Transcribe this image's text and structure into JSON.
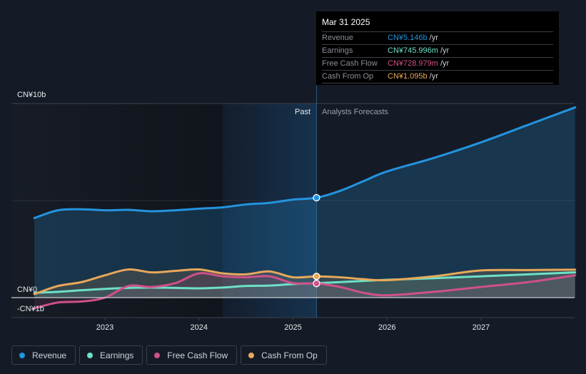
{
  "chart_data": {
    "type": "line",
    "title": "",
    "x_unit": "year",
    "xlim": [
      2022.25,
      2028.0
    ],
    "ylim": [
      -1,
      10
    ],
    "y_unit": "CN¥ billions",
    "y_tick_labels": [
      {
        "value": 10,
        "label": "CN¥10b"
      },
      {
        "value": 0,
        "label": "CN¥0"
      },
      {
        "value": -1,
        "label": "-CN¥1b"
      }
    ],
    "x_ticks": [
      {
        "value": 2023,
        "label": "2023"
      },
      {
        "value": 2024,
        "label": "2024"
      },
      {
        "value": 2025,
        "label": "2025"
      },
      {
        "value": 2026,
        "label": "2026"
      },
      {
        "value": 2027,
        "label": "2027"
      }
    ],
    "past_label": "Past",
    "forecast_label": "Analysts Forecasts",
    "past_shade_start": 2024.25,
    "divider_x": 2025.25,
    "grid": true,
    "legend_position": "bottom-left",
    "series": [
      {
        "name": "Revenue",
        "color": "#2394df",
        "points": [
          [
            2022.25,
            4.1
          ],
          [
            2022.5,
            4.5
          ],
          [
            2022.75,
            4.55
          ],
          [
            2023.0,
            4.5
          ],
          [
            2023.25,
            4.52
          ],
          [
            2023.5,
            4.45
          ],
          [
            2023.75,
            4.5
          ],
          [
            2024.0,
            4.58
          ],
          [
            2024.25,
            4.65
          ],
          [
            2024.5,
            4.8
          ],
          [
            2024.75,
            4.88
          ],
          [
            2025.0,
            5.05
          ],
          [
            2025.25,
            5.146
          ],
          [
            2025.5,
            5.5
          ],
          [
            2025.75,
            6.0
          ],
          [
            2026.0,
            6.5
          ],
          [
            2026.5,
            7.2
          ],
          [
            2027.0,
            8.0
          ],
          [
            2027.5,
            8.9
          ],
          [
            2028.0,
            9.8
          ]
        ]
      },
      {
        "name": "Earnings",
        "color": "#6ee0c8",
        "points": [
          [
            2022.25,
            0.25
          ],
          [
            2022.5,
            0.3
          ],
          [
            2022.75,
            0.38
          ],
          [
            2023.0,
            0.45
          ],
          [
            2023.25,
            0.5
          ],
          [
            2023.5,
            0.52
          ],
          [
            2023.75,
            0.5
          ],
          [
            2024.0,
            0.48
          ],
          [
            2024.25,
            0.52
          ],
          [
            2024.5,
            0.6
          ],
          [
            2024.75,
            0.62
          ],
          [
            2025.0,
            0.7
          ],
          [
            2025.25,
            0.746
          ],
          [
            2025.5,
            0.8
          ],
          [
            2025.75,
            0.86
          ],
          [
            2026.0,
            0.92
          ],
          [
            2026.5,
            1.0
          ],
          [
            2027.0,
            1.1
          ],
          [
            2027.5,
            1.2
          ],
          [
            2028.0,
            1.3
          ]
        ]
      },
      {
        "name": "Free Cash Flow",
        "color": "#d0508a",
        "points": [
          [
            2022.25,
            -0.55
          ],
          [
            2022.5,
            -0.25
          ],
          [
            2022.75,
            -0.2
          ],
          [
            2023.0,
            0.0
          ],
          [
            2023.25,
            0.6
          ],
          [
            2023.5,
            0.55
          ],
          [
            2023.75,
            0.75
          ],
          [
            2024.0,
            1.25
          ],
          [
            2024.25,
            1.1
          ],
          [
            2024.5,
            1.05
          ],
          [
            2024.75,
            1.1
          ],
          [
            2025.0,
            0.75
          ],
          [
            2025.25,
            0.729
          ],
          [
            2025.5,
            0.55
          ],
          [
            2025.75,
            0.25
          ],
          [
            2026.0,
            0.12
          ],
          [
            2026.5,
            0.3
          ],
          [
            2027.0,
            0.55
          ],
          [
            2027.5,
            0.8
          ],
          [
            2028.0,
            1.15
          ]
        ]
      },
      {
        "name": "Cash From Op",
        "color": "#e8a85a",
        "points": [
          [
            2022.25,
            0.18
          ],
          [
            2022.5,
            0.6
          ],
          [
            2022.75,
            0.8
          ],
          [
            2023.0,
            1.15
          ],
          [
            2023.25,
            1.45
          ],
          [
            2023.5,
            1.3
          ],
          [
            2023.75,
            1.38
          ],
          [
            2024.0,
            1.45
          ],
          [
            2024.25,
            1.25
          ],
          [
            2024.5,
            1.2
          ],
          [
            2024.75,
            1.35
          ],
          [
            2025.0,
            1.05
          ],
          [
            2025.25,
            1.095
          ],
          [
            2025.5,
            1.05
          ],
          [
            2025.75,
            0.95
          ],
          [
            2026.0,
            0.9
          ],
          [
            2026.5,
            1.1
          ],
          [
            2027.0,
            1.4
          ],
          [
            2027.5,
            1.42
          ],
          [
            2028.0,
            1.44
          ]
        ]
      }
    ]
  },
  "tooltip": {
    "date": "Mar 31 2025",
    "rows": [
      {
        "label": "Revenue",
        "value": "CN¥5.146b",
        "unit": "/yr",
        "color": "#2394df"
      },
      {
        "label": "Earnings",
        "value": "CN¥745.996m",
        "unit": "/yr",
        "color": "#6ee0c8"
      },
      {
        "label": "Free Cash Flow",
        "value": "CN¥728.979m",
        "unit": "/yr",
        "color": "#d0508a"
      },
      {
        "label": "Cash From Op",
        "value": "CN¥1.095b",
        "unit": "/yr",
        "color": "#e8a85a"
      }
    ]
  },
  "legend": [
    {
      "label": "Revenue",
      "color": "#2394df"
    },
    {
      "label": "Earnings",
      "color": "#6ee0c8"
    },
    {
      "label": "Free Cash Flow",
      "color": "#d0508a"
    },
    {
      "label": "Cash From Op",
      "color": "#e8a85a"
    }
  ]
}
